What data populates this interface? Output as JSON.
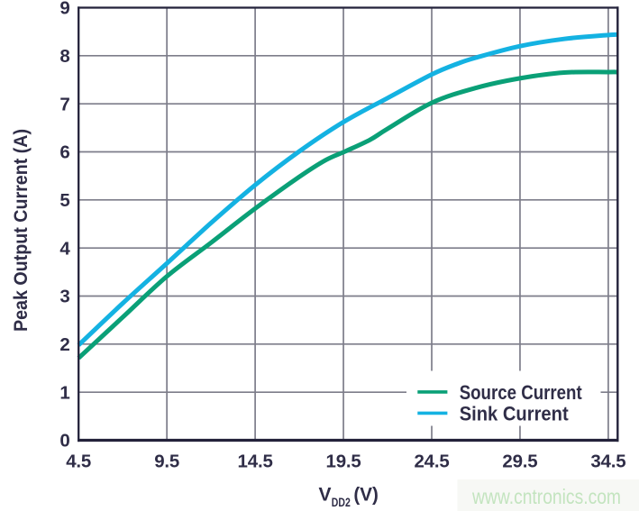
{
  "chart_data": {
    "type": "line",
    "title": "",
    "ylabel": "Peak Output Current (A)",
    "xlabel": {
      "base": "V",
      "subscript": "DD2",
      "unit": "(V)"
    },
    "xlim": [
      4.5,
      35.03
    ],
    "ylim": [
      0,
      9
    ],
    "grid": true,
    "legend_position": "lower right",
    "x_ticks": [
      4.5,
      9.5,
      14.5,
      19.5,
      24.5,
      29.5,
      34.5
    ],
    "x_tick_labels": [
      "4.5",
      "9.5",
      "14.5",
      "19.5",
      "24.5",
      "29.5",
      "34.5"
    ],
    "y_ticks": [
      0,
      1,
      2,
      3,
      4,
      5,
      6,
      7,
      8,
      9
    ],
    "y_tick_labels": [
      "0",
      "1",
      "2",
      "3",
      "4",
      "5",
      "6",
      "7",
      "8",
      "9"
    ],
    "series": [
      {
        "name": "Source Current",
        "color": "#0aa077",
        "points": [
          [
            4.5,
            1.71
          ],
          [
            7.0,
            2.56
          ],
          [
            9.5,
            3.41
          ],
          [
            12.0,
            4.11
          ],
          [
            14.5,
            4.82
          ],
          [
            17.0,
            5.48
          ],
          [
            18.5,
            5.83
          ],
          [
            19.6,
            6.01
          ],
          [
            21.0,
            6.25
          ],
          [
            22.0,
            6.48
          ],
          [
            24.5,
            7.02
          ],
          [
            27.0,
            7.33
          ],
          [
            29.5,
            7.53
          ],
          [
            32.0,
            7.65
          ],
          [
            34.5,
            7.66
          ],
          [
            35.03,
            7.66
          ]
        ]
      },
      {
        "name": "Sink Current",
        "color": "#14b2e2",
        "points": [
          [
            4.5,
            1.98
          ],
          [
            7.0,
            2.85
          ],
          [
            9.5,
            3.68
          ],
          [
            12.0,
            4.52
          ],
          [
            14.5,
            5.31
          ],
          [
            17.0,
            6.01
          ],
          [
            19.5,
            6.62
          ],
          [
            22.0,
            7.12
          ],
          [
            24.5,
            7.61
          ],
          [
            26.0,
            7.84
          ],
          [
            27.0,
            7.96
          ],
          [
            29.5,
            8.2
          ],
          [
            32.0,
            8.35
          ],
          [
            34.5,
            8.43
          ],
          [
            35.03,
            8.44
          ]
        ]
      }
    ]
  },
  "watermark": {
    "text": "www.cntronics.com"
  },
  "colors": {
    "background": "#ffffff",
    "axis": "#23223a",
    "grid": "#7d7d8a",
    "text": "#2f2d47",
    "legend_background": "#ffffff",
    "watermark_text": "#c3e4bf",
    "watermark_background": "#f7f8f5"
  }
}
